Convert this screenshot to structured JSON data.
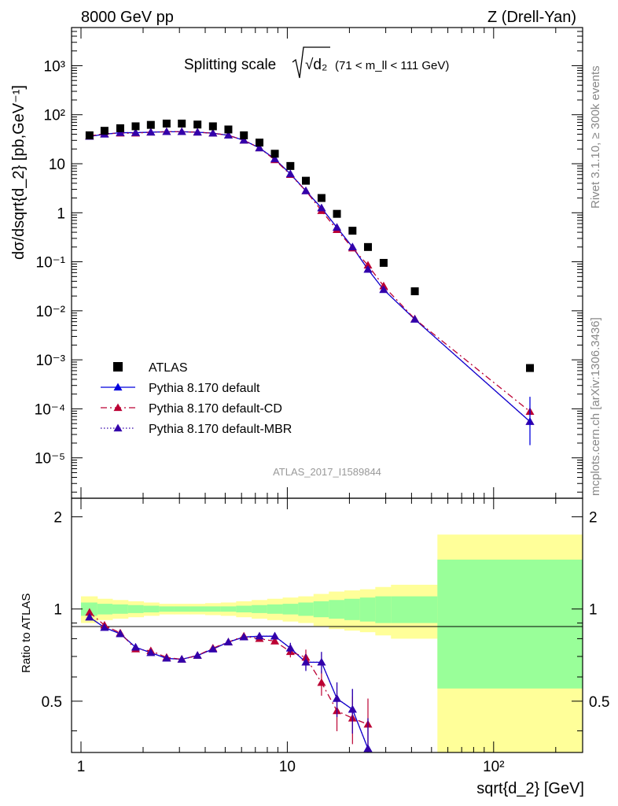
{
  "header": {
    "left": "8000 GeV pp",
    "right": "Z (Drell-Yan)"
  },
  "side_labels": {
    "rivet": "Rivet 3.1.10, ≥ 300k events",
    "mcplots": "mcplots.cern.ch [arXiv:1306.3436]"
  },
  "chart_data": [
    {
      "type": "scatter",
      "panel": "main",
      "title": "Splitting scale",
      "title_symbol": "√d₂",
      "title_cut": "(71 < m_ll < 111 GeV)",
      "ylabel": "dσ/dsqrt{d_2} [pb,GeV⁻¹]",
      "analysis_id": "ATLAS_2017_I1589844",
      "yscale": "log",
      "xscale": "log",
      "xlim": [
        0.9,
        270
      ],
      "ylim": [
        1.5e-06,
        6000
      ],
      "y_tick_labels": [
        "10⁻⁵",
        "10⁻⁴",
        "10⁻³",
        "10⁻²",
        "10⁻¹",
        "1",
        "10",
        "10²",
        "10³"
      ],
      "legend_position": "bottom-left",
      "series": [
        {
          "name": "ATLAS",
          "style": "square",
          "color": "#000000",
          "x": [
            1.1,
            1.3,
            1.55,
            1.84,
            2.18,
            2.6,
            3.08,
            3.67,
            4.36,
            5.18,
            6.16,
            7.33,
            8.7,
            10.35,
            12.3,
            14.65,
            17.4,
            20.7,
            24.6,
            29.3,
            41.5,
            150
          ],
          "y": [
            38,
            47,
            53,
            58,
            62,
            66,
            66,
            63,
            58,
            50,
            38,
            27,
            16,
            9,
            4.5,
            2.0,
            0.95,
            0.43,
            0.2,
            0.095,
            0.025,
            0.00068
          ]
        },
        {
          "name": "Pythia 8.170 default",
          "style": "solid",
          "color": "#0000dd",
          "x": [
            1.1,
            1.3,
            1.55,
            1.84,
            2.18,
            2.6,
            3.08,
            3.67,
            4.36,
            5.18,
            6.16,
            7.33,
            8.7,
            10.35,
            12.3,
            14.65,
            17.4,
            20.7,
            24.6,
            29.3,
            41.5,
            150
          ],
          "y": [
            36,
            40,
            43,
            43,
            44,
            45,
            45,
            44,
            42,
            38,
            30,
            21,
            12.5,
            6.2,
            2.8,
            1.25,
            0.5,
            0.2,
            0.07,
            0.027,
            0.0067,
            5.5e-05
          ]
        },
        {
          "name": "Pythia 8.170 default-CD",
          "style": "dashdot",
          "color": "#bb0033",
          "x": [
            1.1,
            1.3,
            1.55,
            1.84,
            2.18,
            2.6,
            3.08,
            3.67,
            4.36,
            5.18,
            6.16,
            7.33,
            8.7,
            10.35,
            12.3,
            14.65,
            17.4,
            20.7,
            24.6,
            29.3,
            41.5,
            150
          ],
          "y": [
            37,
            41,
            42,
            42,
            44,
            45,
            45,
            44,
            42,
            38,
            30,
            21,
            12,
            6.0,
            2.8,
            1.1,
            0.45,
            0.19,
            0.085,
            0.032,
            0.0068,
            8.8e-05
          ]
        },
        {
          "name": "Pythia 8.170 default-MBR",
          "style": "dotted",
          "color": "#3300aa",
          "x": [
            1.1,
            1.3,
            1.55,
            1.84,
            2.18,
            2.6,
            3.08,
            3.67,
            4.36,
            5.18,
            6.16,
            7.33,
            8.7,
            10.35,
            12.3,
            14.65,
            17.4,
            20.7,
            24.6,
            29.3,
            41.5,
            150
          ],
          "y": [
            36,
            40,
            43,
            43,
            44,
            45,
            45,
            44,
            42,
            38,
            30,
            21,
            12.5,
            6.2,
            2.8,
            1.25,
            0.5,
            0.2,
            0.07,
            0.027,
            0.0067,
            5.5e-05
          ]
        }
      ]
    },
    {
      "type": "line",
      "panel": "ratio",
      "ylabel": "Ratio to ATLAS",
      "xlabel": "sqrt{d_2} [GeV]",
      "xscale": "log",
      "xlim": [
        0.9,
        270
      ],
      "ylim": [
        0.34,
        2.3
      ],
      "y_ticks": [
        "0.5",
        "1",
        "2"
      ],
      "x_ticks": [
        "1",
        "10",
        "10²"
      ],
      "bands": {
        "bin_edges": [
          1.0,
          1.2,
          1.42,
          1.69,
          2.01,
          2.39,
          2.84,
          3.37,
          4.0,
          4.76,
          5.65,
          6.72,
          7.99,
          9.5,
          11.3,
          13.4,
          15.9,
          18.9,
          22.5,
          26.7,
          31.8,
          53.4,
          270
        ],
        "green_half_width": [
          0.05,
          0.04,
          0.035,
          0.03,
          0.025,
          0.02,
          0.02,
          0.02,
          0.02,
          0.02,
          0.025,
          0.03,
          0.035,
          0.04,
          0.05,
          0.06,
          0.07,
          0.08,
          0.09,
          0.1,
          0.1,
          0.45
        ],
        "yellow_half_width": [
          0.1,
          0.08,
          0.07,
          0.06,
          0.05,
          0.04,
          0.04,
          0.04,
          0.045,
          0.05,
          0.06,
          0.07,
          0.08,
          0.09,
          0.1,
          0.12,
          0.14,
          0.15,
          0.16,
          0.18,
          0.2,
          0.75
        ]
      },
      "series": [
        {
          "name": "Pythia 8.170 default",
          "color": "#0000dd",
          "x": [
            1.1,
            1.3,
            1.55,
            1.84,
            2.18,
            2.6,
            3.08,
            3.67,
            4.36,
            5.18,
            6.16,
            7.33,
            8.7,
            10.35,
            12.3,
            14.65,
            17.4,
            20.7,
            24.6
          ],
          "y": [
            0.94,
            0.87,
            0.83,
            0.75,
            0.72,
            0.69,
            0.685,
            0.705,
            0.74,
            0.78,
            0.81,
            0.815,
            0.815,
            0.745,
            0.67,
            0.67,
            0.51,
            0.47,
            0.35
          ]
        },
        {
          "name": "Pythia 8.170 default-CD",
          "color": "#bb0033",
          "x": [
            1.1,
            1.3,
            1.55,
            1.84,
            2.18,
            2.6,
            3.08,
            3.67,
            4.36,
            5.18,
            6.16,
            7.33,
            8.7,
            10.35,
            12.3,
            14.65,
            17.4,
            20.7,
            24.6
          ],
          "y": [
            0.975,
            0.885,
            0.835,
            0.74,
            0.73,
            0.695,
            0.685,
            0.705,
            0.745,
            0.78,
            0.815,
            0.8,
            0.785,
            0.725,
            0.695,
            0.575,
            0.465,
            0.44,
            0.42
          ]
        },
        {
          "name": "Pythia 8.170 default-MBR",
          "color": "#3300aa",
          "x": [
            1.1,
            1.3,
            1.55,
            1.84,
            2.18,
            2.6,
            3.08,
            3.67,
            4.36,
            5.18,
            6.16,
            7.33,
            8.7,
            10.35,
            12.3,
            14.65,
            17.4,
            20.7,
            24.6
          ],
          "y": [
            0.94,
            0.87,
            0.83,
            0.75,
            0.72,
            0.69,
            0.685,
            0.705,
            0.74,
            0.78,
            0.81,
            0.815,
            0.815,
            0.745,
            0.67,
            0.67,
            0.51,
            0.47,
            0.35
          ]
        }
      ]
    }
  ]
}
